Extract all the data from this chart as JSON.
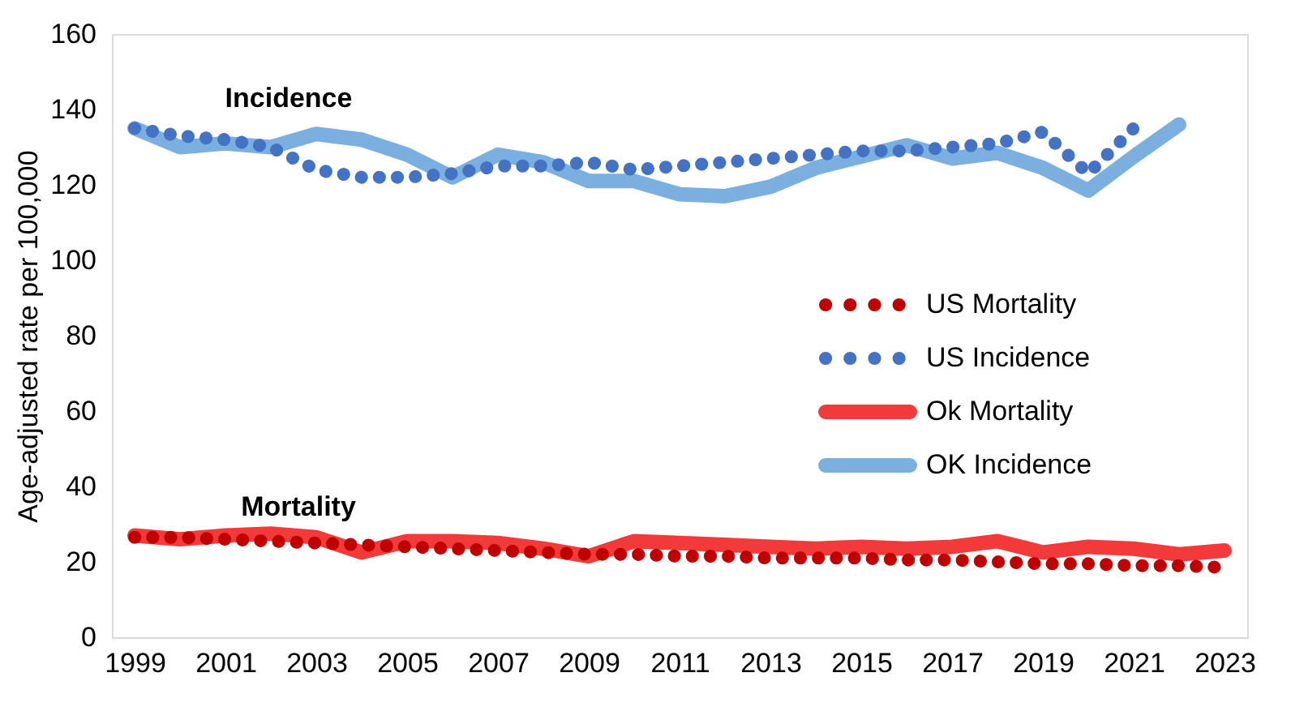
{
  "chart_data": {
    "type": "line",
    "ylabel": "Age-adjusted rate per 100,000",
    "x": [
      1999,
      2000,
      2001,
      2002,
      2003,
      2004,
      2005,
      2006,
      2007,
      2008,
      2009,
      2010,
      2011,
      2012,
      2013,
      2014,
      2015,
      2016,
      2017,
      2018,
      2019,
      2020,
      2021,
      2022,
      2023
    ],
    "xlim": [
      1998.5,
      2023.5
    ],
    "xticks": [
      1999,
      2001,
      2003,
      2005,
      2007,
      2009,
      2011,
      2013,
      2015,
      2017,
      2019,
      2021,
      2023
    ],
    "ylim": [
      0,
      160
    ],
    "yticks": [
      0,
      20,
      40,
      60,
      80,
      100,
      120,
      140,
      160
    ],
    "grid": false,
    "legend": "right",
    "series": [
      {
        "name": "US Mortality",
        "color": "#c00000",
        "line_style": "dotted",
        "values": [
          26.5,
          26.5,
          26,
          25.5,
          25,
          24.5,
          24,
          23.5,
          23,
          22.5,
          22,
          22,
          21.5,
          21.5,
          21,
          21,
          21,
          20.5,
          20.5,
          20,
          19.5,
          19.5,
          19,
          19,
          18.5
        ]
      },
      {
        "name": "US Incidence",
        "color": "#4472c4",
        "line_style": "dotted",
        "values": [
          135,
          133,
          132,
          130,
          124,
          122,
          122,
          123,
          125,
          125,
          126,
          124,
          125,
          126,
          127,
          128,
          129,
          129,
          130,
          131,
          134,
          123,
          135,
          null,
          null
        ]
      },
      {
        "name": "Ok Mortality",
        "color": "#f23a3a",
        "line_style": "solid",
        "values": [
          27,
          26,
          27,
          27.5,
          26.5,
          22.5,
          25.5,
          25.5,
          25,
          23.5,
          21.5,
          25.5,
          25,
          24.5,
          24,
          23.5,
          24,
          23.5,
          24,
          25.5,
          22.5,
          24,
          23.5,
          22,
          23
        ]
      },
      {
        "name": "OK Incidence",
        "color": "#7aafe0",
        "line_style": "solid",
        "values": [
          135,
          130,
          131,
          130,
          133.5,
          132,
          128,
          122,
          128,
          126,
          121,
          121,
          117.5,
          117,
          119.5,
          124.5,
          127.5,
          130.5,
          127,
          128.5,
          124.5,
          118.5,
          127.5,
          136,
          null
        ]
      }
    ],
    "annotations": [
      "Incidence",
      "Mortality"
    ]
  }
}
